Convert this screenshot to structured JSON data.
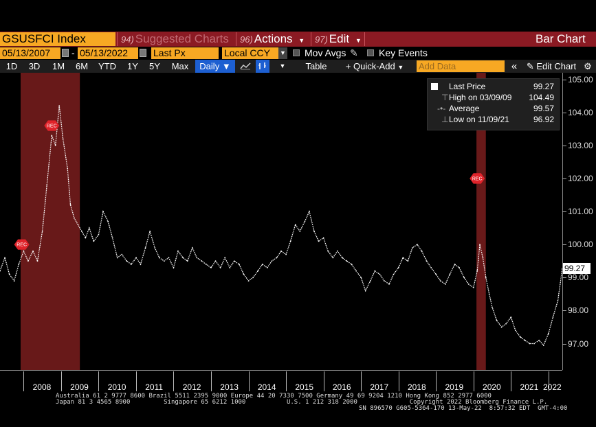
{
  "header": {
    "ticker": "GSUSFCI Index",
    "suggested_num": "94)",
    "suggested_label": "Suggested Charts",
    "actions_num": "96)",
    "actions_label": "Actions",
    "edit_num": "97)",
    "edit_label": "Edit",
    "chart_type": "Bar Chart"
  },
  "controls": {
    "start_date": "05/13/2007",
    "end_date": "05/13/2022",
    "field": "Last Px",
    "currency": "Local CCY",
    "mov_avgs": "Mov Avgs",
    "key_events": "Key Events"
  },
  "toolbar": {
    "ranges": [
      "1D",
      "3D",
      "1M",
      "6M",
      "YTD",
      "1Y",
      "5Y",
      "Max"
    ],
    "frequency": "Daily",
    "table": "Table",
    "quick_add": "Quick-Add",
    "add_data_placeholder": "Add Data",
    "edit_chart": "Edit Chart"
  },
  "legend": {
    "last_label": "Last Price",
    "last_value": "99.27",
    "high_label": "High on 03/09/09",
    "high_value": "104.49",
    "avg_label": "Average",
    "avg_value": "99.57",
    "low_label": "Low on 11/09/21",
    "low_value": "96.92"
  },
  "last_price_tag": "99.27",
  "event_tag": "REC",
  "footer": {
    "line1": "Australia 61 2 9777 8600 Brazil 5511 2395 9000 Europe 44 20 7330 7500 Germany 49 69 9204 1210 Hong Kong 852 2977 6000",
    "line2": "Japan 81 3 4565 8900         Singapore 65 6212 1000           U.S. 1 212 318 2000              Copyright 2022 Bloomberg Finance L.P.",
    "line3": "SN 896570 G605-5364-170 13-May-22  8:57:32 EDT  GMT-4:00"
  },
  "colors": {
    "header_bar": "#8b1a23",
    "amber": "#f7a823",
    "recession_shade": "#7a1d1d",
    "series": "#ffffff",
    "event_marker": "#e0232a"
  },
  "chart_data": {
    "type": "line",
    "title": "",
    "xlabel": "",
    "ylabel": "",
    "ylim": [
      96.2,
      105.2
    ],
    "yticks": [
      "97.00",
      "98.00",
      "99.00",
      "100.00",
      "101.00",
      "102.00",
      "103.00",
      "104.00",
      "105.00"
    ],
    "xlim": [
      2007.37,
      2022.37
    ],
    "xticks": [
      "2008",
      "2009",
      "2010",
      "2011",
      "2012",
      "2013",
      "2014",
      "2015",
      "2016",
      "2017",
      "2018",
      "2019",
      "2020",
      "2021",
      "2022"
    ],
    "recessions": [
      [
        2007.92,
        2009.5
      ],
      [
        2020.08,
        2020.33
      ]
    ],
    "event_markers": [
      {
        "x": 2007.95,
        "y": 100.0
      },
      {
        "x": 2008.75,
        "y": 103.6
      },
      {
        "x": 2020.1,
        "y": 102.0
      }
    ],
    "x": [
      2007.37,
      2007.5,
      2007.62,
      2007.75,
      2007.87,
      2008.0,
      2008.12,
      2008.25,
      2008.37,
      2008.5,
      2008.62,
      2008.75,
      2008.85,
      2008.95,
      2009.05,
      2009.17,
      2009.25,
      2009.35,
      2009.45,
      2009.55,
      2009.65,
      2009.75,
      2009.87,
      2010.0,
      2010.12,
      2010.25,
      2010.37,
      2010.5,
      2010.62,
      2010.75,
      2010.87,
      2011.0,
      2011.12,
      2011.25,
      2011.37,
      2011.5,
      2011.62,
      2011.75,
      2011.87,
      2012.0,
      2012.12,
      2012.25,
      2012.37,
      2012.5,
      2012.62,
      2012.75,
      2012.87,
      2013.0,
      2013.12,
      2013.25,
      2013.37,
      2013.5,
      2013.62,
      2013.75,
      2013.87,
      2014.0,
      2014.12,
      2014.25,
      2014.37,
      2014.5,
      2014.62,
      2014.75,
      2014.87,
      2015.0,
      2015.12,
      2015.25,
      2015.37,
      2015.5,
      2015.62,
      2015.75,
      2015.87,
      2016.0,
      2016.12,
      2016.25,
      2016.37,
      2016.5,
      2016.62,
      2016.75,
      2016.87,
      2017.0,
      2017.12,
      2017.25,
      2017.37,
      2017.5,
      2017.62,
      2017.75,
      2017.87,
      2018.0,
      2018.12,
      2018.25,
      2018.37,
      2018.5,
      2018.62,
      2018.75,
      2018.87,
      2019.0,
      2019.12,
      2019.25,
      2019.37,
      2019.5,
      2019.62,
      2019.75,
      2019.87,
      2020.0,
      2020.1,
      2020.17,
      2020.25,
      2020.33,
      2020.42,
      2020.5,
      2020.62,
      2020.75,
      2020.87,
      2021.0,
      2021.12,
      2021.25,
      2021.37,
      2021.5,
      2021.62,
      2021.75,
      2021.87,
      2022.0,
      2022.12,
      2022.25,
      2022.37
    ],
    "values": [
      99.2,
      99.6,
      99.1,
      98.9,
      99.4,
      99.8,
      99.5,
      99.8,
      99.5,
      100.4,
      101.8,
      103.3,
      103.0,
      104.2,
      103.2,
      102.3,
      101.2,
      100.8,
      100.6,
      100.4,
      100.2,
      100.5,
      100.1,
      100.3,
      101.0,
      100.7,
      100.2,
      99.6,
      99.7,
      99.5,
      99.4,
      99.6,
      99.4,
      99.9,
      100.4,
      99.9,
      99.6,
      99.5,
      99.6,
      99.3,
      99.8,
      99.6,
      99.5,
      99.9,
      99.6,
      99.5,
      99.4,
      99.3,
      99.5,
      99.3,
      99.6,
      99.3,
      99.5,
      99.4,
      99.1,
      98.9,
      99.0,
      99.2,
      99.4,
      99.3,
      99.5,
      99.6,
      99.8,
      99.7,
      100.1,
      100.6,
      100.4,
      100.7,
      101.0,
      100.4,
      100.1,
      100.2,
      99.8,
      99.6,
      99.8,
      99.6,
      99.5,
      99.4,
      99.2,
      99.0,
      98.6,
      98.9,
      99.2,
      99.1,
      98.9,
      98.8,
      99.1,
      99.3,
      99.6,
      99.5,
      99.9,
      100.0,
      99.8,
      99.5,
      99.3,
      99.1,
      98.9,
      98.8,
      99.1,
      99.4,
      99.3,
      99.0,
      98.8,
      98.7,
      99.2,
      100.0,
      99.6,
      99.0,
      98.5,
      98.1,
      97.7,
      97.5,
      97.6,
      97.8,
      97.4,
      97.2,
      97.1,
      97.0,
      97.0,
      97.1,
      96.95,
      97.3,
      97.8,
      98.3,
      99.27
    ]
  }
}
